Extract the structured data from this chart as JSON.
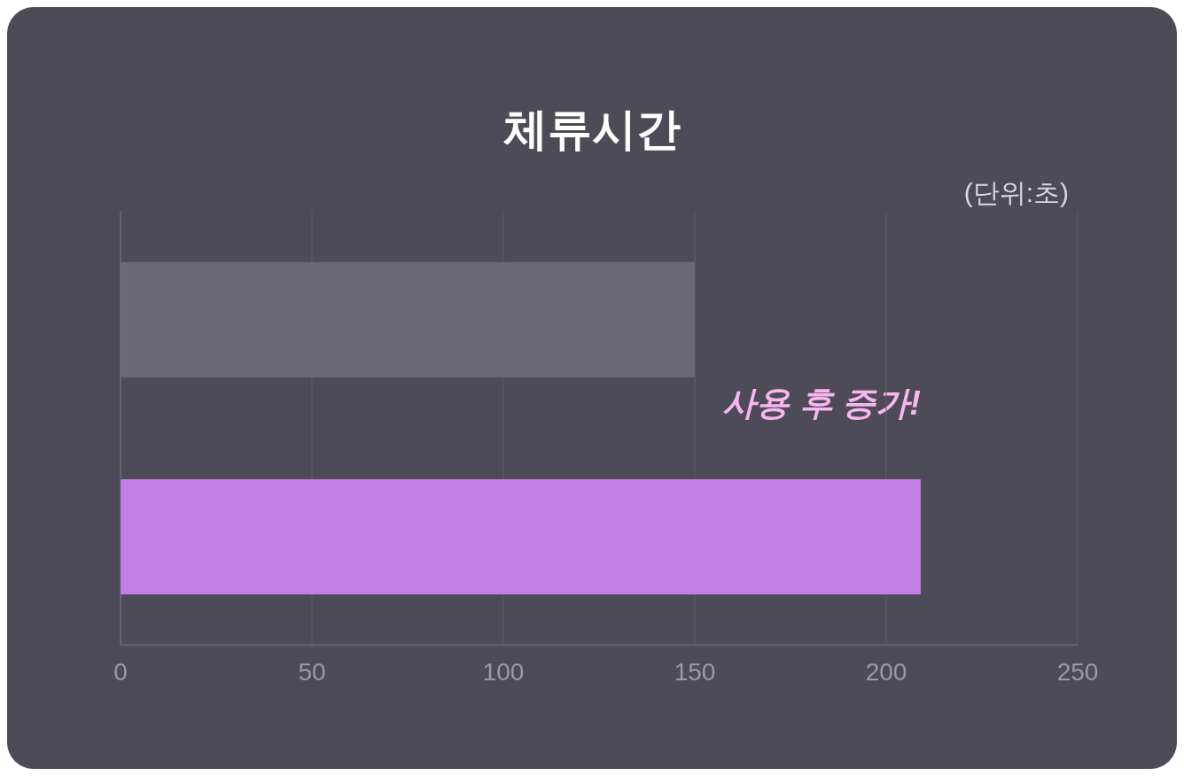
{
  "chart_data": {
    "type": "bar",
    "orientation": "horizontal",
    "title": "체류시간",
    "categories": [
      null,
      null
    ],
    "values": [
      150,
      209
    ],
    "colors": [
      "#6a6779",
      "#c47ee8"
    ],
    "xlim": [
      0,
      250
    ],
    "xticks": [
      0,
      50,
      100,
      150,
      200,
      250
    ],
    "grid": "x",
    "annotations": [
      "(단위:초)",
      "사용 후 증가!"
    ]
  }
}
